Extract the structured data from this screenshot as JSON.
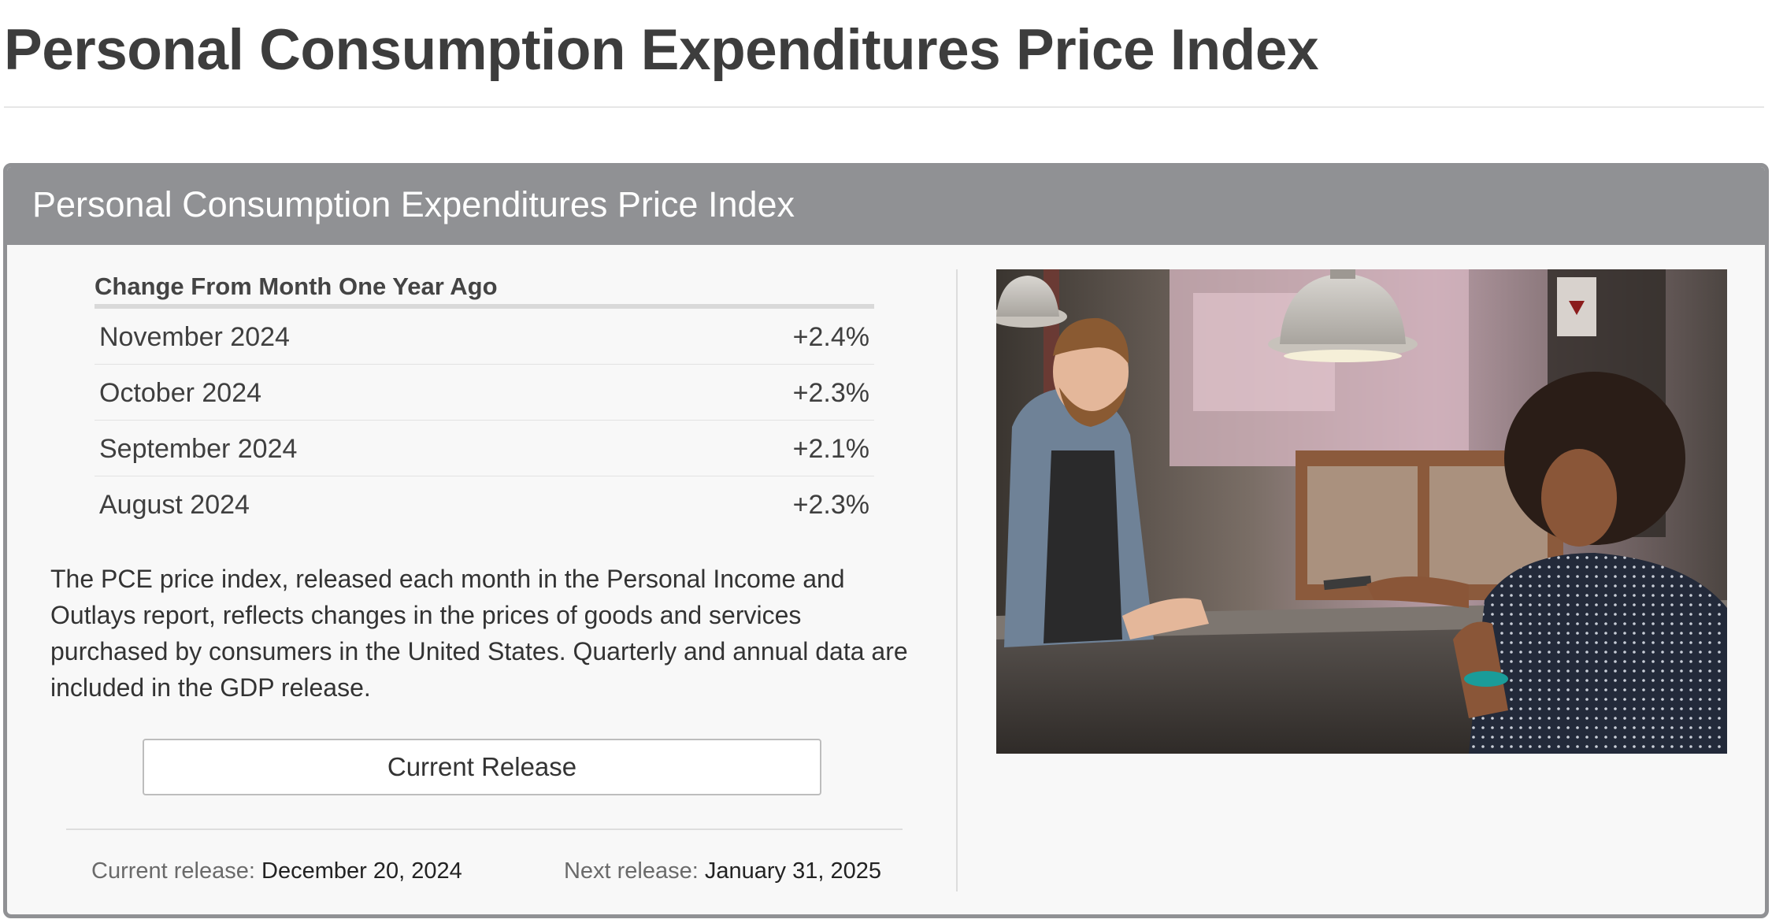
{
  "page": {
    "title": "Personal Consumption Expenditures Price Index"
  },
  "panel": {
    "title": "Personal Consumption Expenditures Price Index",
    "table_caption": "Change From Month One Year Ago",
    "rows": [
      {
        "label": "November 2024",
        "value": "+2.4%"
      },
      {
        "label": "October 2024",
        "value": "+2.3%"
      },
      {
        "label": "September 2024",
        "value": "+2.1%"
      },
      {
        "label": "August 2024",
        "value": "+2.3%"
      }
    ],
    "description": "The PCE price index, released each month in the Personal Income and Outlays report, reflects changes in the prices of goods and services purchased by consumers in the United States. Quarterly and annual data are included in the GDP release.",
    "button_label": "Current Release",
    "current_release_label": "Current release:",
    "current_release_date": "December 20, 2024",
    "next_release_label": "Next release:",
    "next_release_date": "January 31, 2025"
  },
  "colors": {
    "panel_header": "#909194",
    "panel_background": "#f8f8f8",
    "page_title": "#3d3d3d"
  },
  "image": {
    "subject": "barista-taking-card-payment-photo"
  }
}
